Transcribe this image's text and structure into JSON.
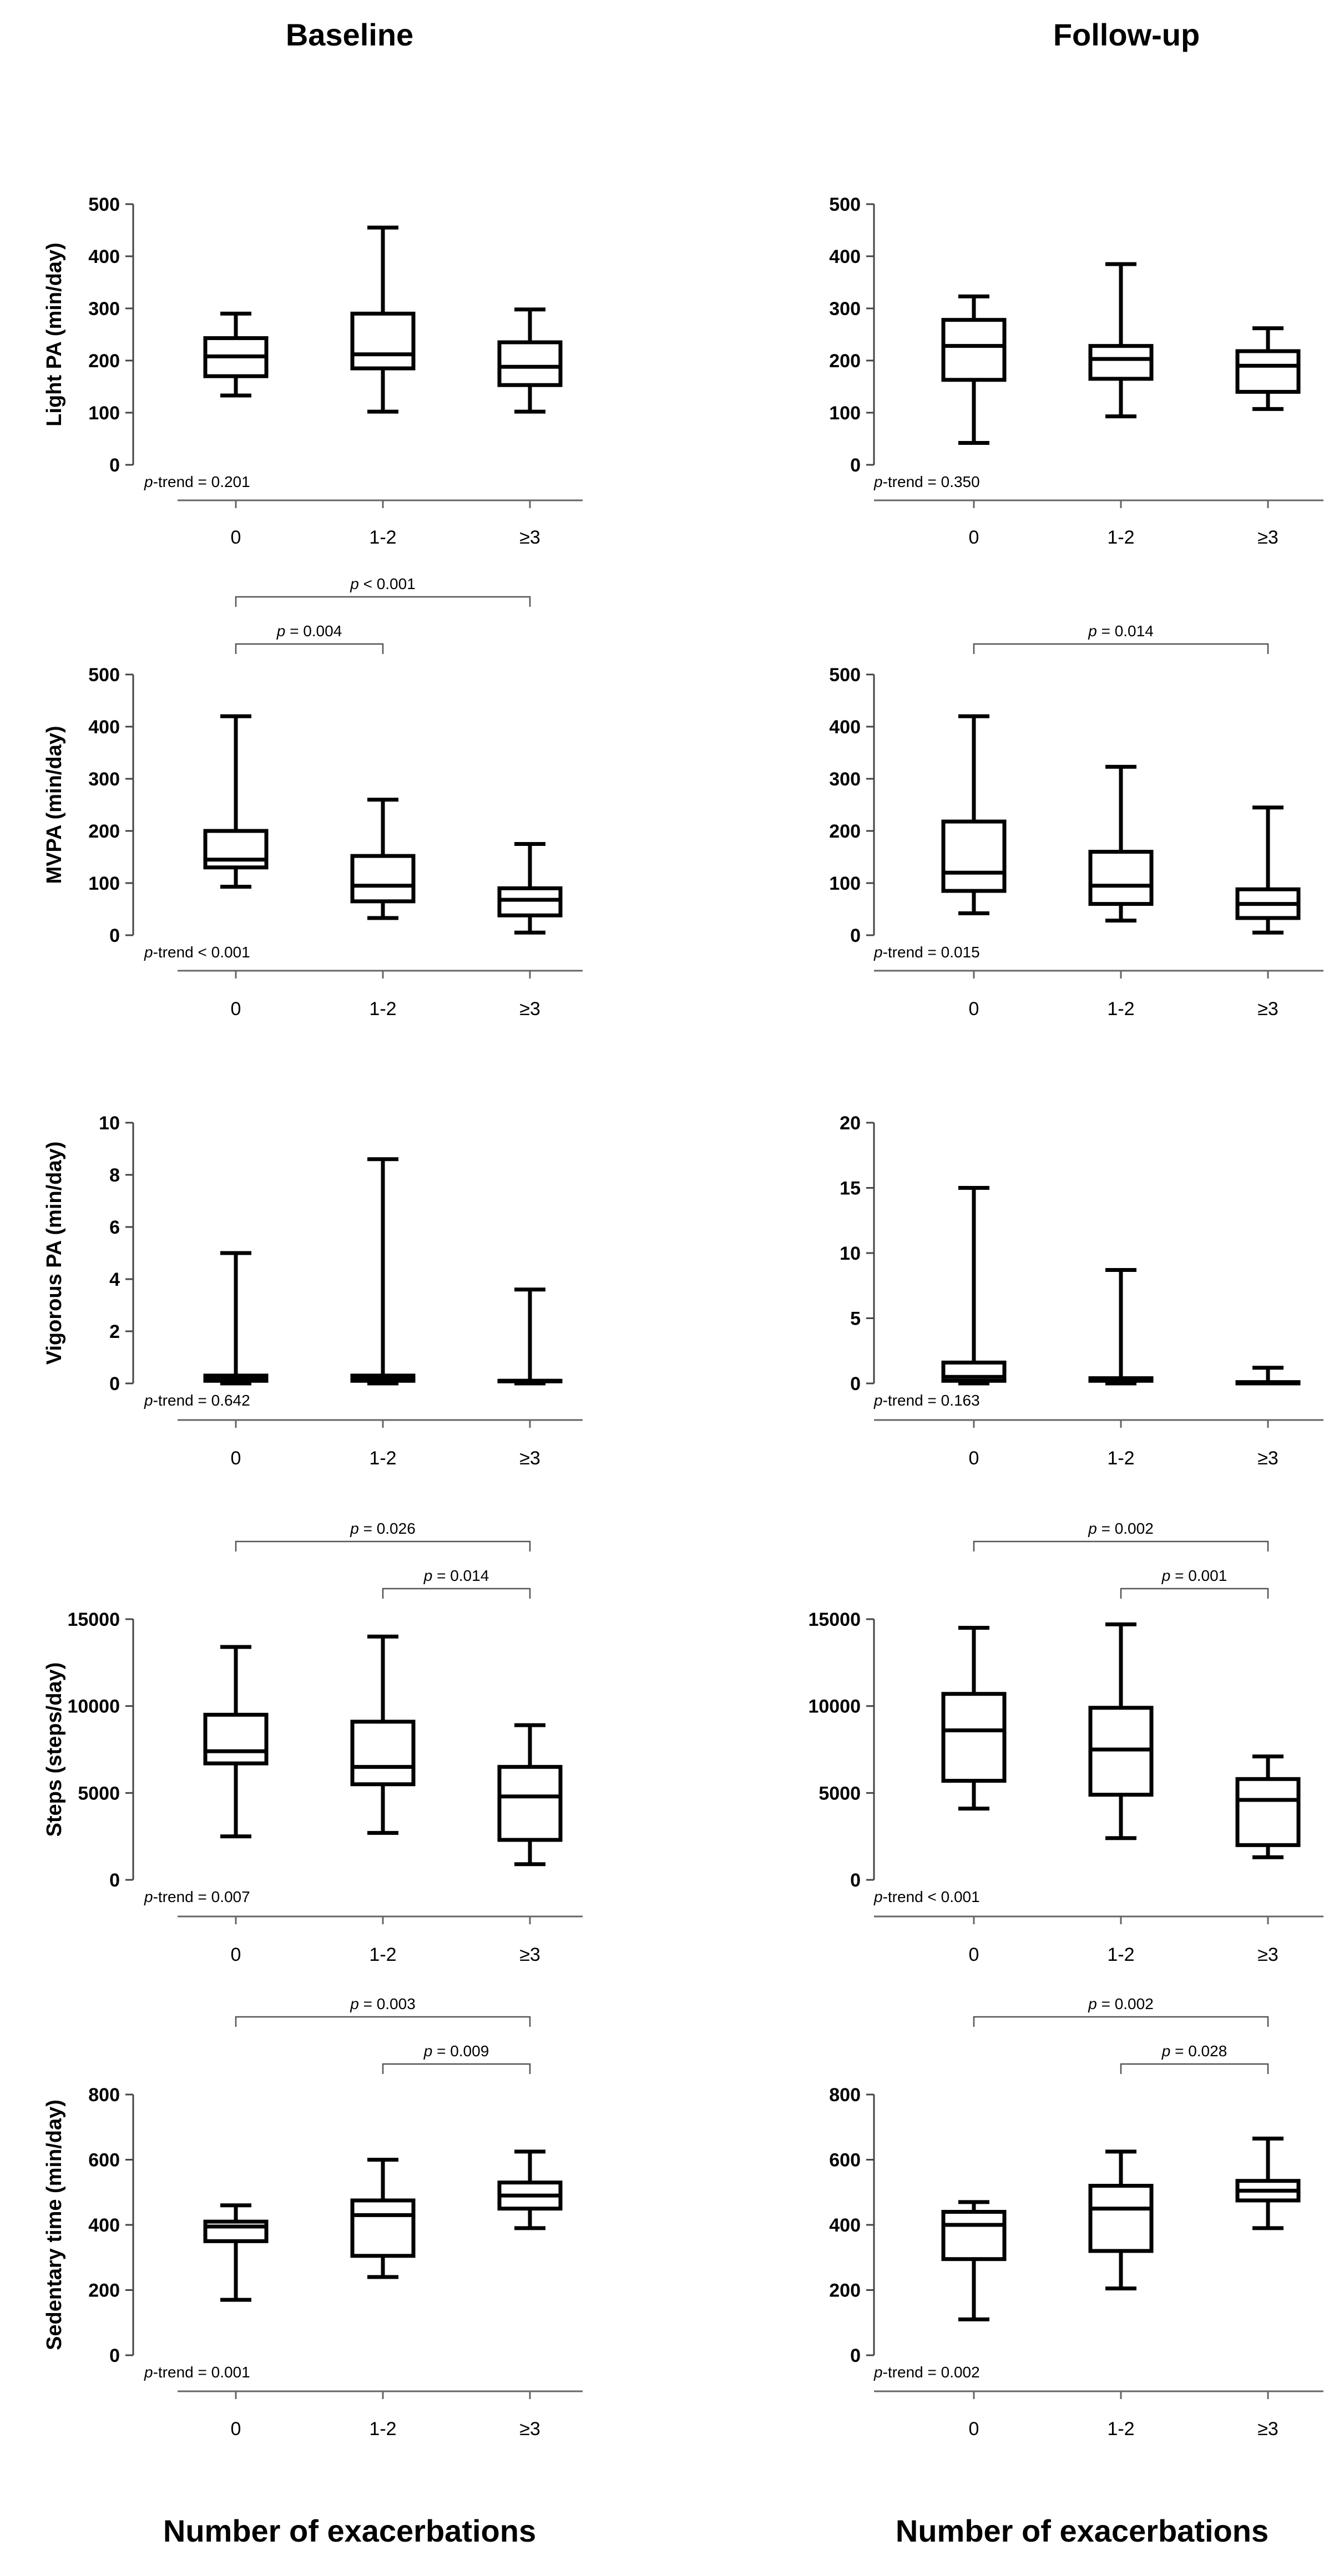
{
  "columns": {
    "left_title": "Baseline",
    "right_title": "Follow-up"
  },
  "bottom_labels": {
    "left": "Number of exacerbations",
    "right": "Number of exacerbations"
  },
  "chart_data": [
    {
      "id": "light-baseline",
      "type": "boxplot",
      "column": "Baseline",
      "ylabel": "Light PA (min/day)",
      "categories": [
        "0",
        "1-2",
        "≥3"
      ],
      "ylim": [
        0,
        500
      ],
      "yticks": [
        "0",
        "100",
        "200",
        "300",
        "400",
        "500"
      ],
      "boxes": [
        {
          "min": 133,
          "q1": 170,
          "median": 208,
          "q3": 243,
          "max": 290
        },
        {
          "min": 102,
          "q1": 185,
          "median": 212,
          "q3": 290,
          "max": 455
        },
        {
          "min": 102,
          "q1": 153,
          "median": 188,
          "q3": 235,
          "max": 298
        }
      ],
      "ptrend_label": "p",
      "ptrend_value": "-trend = 0.201",
      "brackets": []
    },
    {
      "id": "light-followup",
      "type": "boxplot",
      "column": "Follow-up",
      "ylabel": "",
      "categories": [
        "0",
        "1-2",
        "≥3"
      ],
      "ylim": [
        0,
        500
      ],
      "yticks": [
        "0",
        "100",
        "200",
        "300",
        "400",
        "500"
      ],
      "boxes": [
        {
          "min": 42,
          "q1": 163,
          "median": 228,
          "q3": 278,
          "max": 323
        },
        {
          "min": 93,
          "q1": 165,
          "median": 203,
          "q3": 228,
          "max": 385
        },
        {
          "min": 107,
          "q1": 140,
          "median": 190,
          "q3": 218,
          "max": 262
        }
      ],
      "ptrend_label": "p",
      "ptrend_value": "-trend = 0.350",
      "brackets": []
    },
    {
      "id": "mvpa-baseline",
      "type": "boxplot",
      "column": "Baseline",
      "ylabel": "MVPA (min/day)",
      "categories": [
        "0",
        "1-2",
        "≥3"
      ],
      "ylim": [
        0,
        500
      ],
      "yticks": [
        "0",
        "100",
        "200",
        "300",
        "400",
        "500"
      ],
      "boxes": [
        {
          "min": 93,
          "q1": 130,
          "median": 145,
          "q3": 200,
          "max": 420
        },
        {
          "min": 33,
          "q1": 65,
          "median": 95,
          "q3": 152,
          "max": 260
        },
        {
          "min": 5,
          "q1": 38,
          "median": 68,
          "q3": 90,
          "max": 175
        }
      ],
      "ptrend_label": "p",
      "ptrend_value": "-trend < 0.001",
      "brackets": [
        {
          "from": 0,
          "to": 1,
          "level": 0,
          "p": "p",
          "label": " = 0.004"
        },
        {
          "from": 0,
          "to": 2,
          "level": 1,
          "p": "p",
          "label": " < 0.001"
        }
      ]
    },
    {
      "id": "mvpa-followup",
      "type": "boxplot",
      "column": "Follow-up",
      "ylabel": "",
      "categories": [
        "0",
        "1-2",
        "≥3"
      ],
      "ylim": [
        0,
        500
      ],
      "yticks": [
        "0",
        "100",
        "200",
        "300",
        "400",
        "500"
      ],
      "boxes": [
        {
          "min": 42,
          "q1": 85,
          "median": 120,
          "q3": 218,
          "max": 420
        },
        {
          "min": 28,
          "q1": 60,
          "median": 95,
          "q3": 160,
          "max": 323
        },
        {
          "min": 5,
          "q1": 33,
          "median": 60,
          "q3": 88,
          "max": 245
        }
      ],
      "ptrend_label": "p",
      "ptrend_value": "-trend = 0.015",
      "brackets": [
        {
          "from": 0,
          "to": 2,
          "level": 0,
          "p": "p",
          "label": " = 0.014"
        }
      ]
    },
    {
      "id": "vig-baseline",
      "type": "boxplot",
      "column": "Baseline",
      "ylabel": "Vigorous PA (min/day)",
      "categories": [
        "0",
        "1-2",
        "≥3"
      ],
      "ylim": [
        0,
        10
      ],
      "yticks": [
        "0",
        "2",
        "4",
        "6",
        "8",
        "10"
      ],
      "boxes": [
        {
          "min": 0,
          "q1": 0.1,
          "median": 0.2,
          "q3": 0.3,
          "max": 5
        },
        {
          "min": 0,
          "q1": 0.1,
          "median": 0.2,
          "q3": 0.3,
          "max": 8.6
        },
        {
          "min": 0,
          "q1": 0.1,
          "median": 0.1,
          "q3": 0.1,
          "max": 3.6
        }
      ],
      "ptrend_label": "p",
      "ptrend_value": "-trend = 0.642",
      "brackets": []
    },
    {
      "id": "vig-followup",
      "type": "boxplot",
      "column": "Follow-up",
      "ylabel": "",
      "categories": [
        "0",
        "1-2",
        "≥3"
      ],
      "ylim": [
        0,
        20
      ],
      "yticks": [
        "0",
        "5",
        "10",
        "15",
        "20"
      ],
      "boxes": [
        {
          "min": 0,
          "q1": 0.2,
          "median": 0.5,
          "q3": 1.6,
          "max": 15
        },
        {
          "min": 0,
          "q1": 0.2,
          "median": 0.3,
          "q3": 0.4,
          "max": 8.7
        },
        {
          "min": 0,
          "q1": 0,
          "median": 0,
          "q3": 0.1,
          "max": 1.2
        }
      ],
      "ptrend_label": "p",
      "ptrend_value": "-trend = 0.163",
      "brackets": []
    },
    {
      "id": "steps-baseline",
      "type": "boxplot",
      "column": "Baseline",
      "ylabel": "Steps (steps/day)",
      "categories": [
        "0",
        "1-2",
        "≥3"
      ],
      "ylim": [
        0,
        15000
      ],
      "yticks": [
        "0",
        "5000",
        "10000",
        "15000"
      ],
      "boxes": [
        {
          "min": 2500,
          "q1": 6700,
          "median": 7400,
          "q3": 9500,
          "max": 13400
        },
        {
          "min": 2700,
          "q1": 5500,
          "median": 6500,
          "q3": 9100,
          "max": 14000
        },
        {
          "min": 900,
          "q1": 2300,
          "median": 4800,
          "q3": 6500,
          "max": 8900
        }
      ],
      "ptrend_label": "p",
      "ptrend_value": "-trend = 0.007",
      "brackets": [
        {
          "from": 1,
          "to": 2,
          "level": 0,
          "p": "p",
          "label": " = 0.014"
        },
        {
          "from": 0,
          "to": 2,
          "level": 1,
          "p": "p",
          "label": " = 0.026"
        }
      ]
    },
    {
      "id": "steps-followup",
      "type": "boxplot",
      "column": "Follow-up",
      "ylabel": "",
      "categories": [
        "0",
        "1-2",
        "≥3"
      ],
      "ylim": [
        0,
        15000
      ],
      "yticks": [
        "0",
        "5000",
        "10000",
        "15000"
      ],
      "boxes": [
        {
          "min": 4100,
          "q1": 5700,
          "median": 8600,
          "q3": 10700,
          "max": 14500
        },
        {
          "min": 2400,
          "q1": 4900,
          "median": 7500,
          "q3": 9900,
          "max": 14700
        },
        {
          "min": 1300,
          "q1": 2000,
          "median": 4600,
          "q3": 5800,
          "max": 7100
        }
      ],
      "ptrend_label": "p",
      "ptrend_value": "-trend  < 0.001",
      "brackets": [
        {
          "from": 1,
          "to": 2,
          "level": 0,
          "p": "p",
          "label": " = 0.001"
        },
        {
          "from": 0,
          "to": 2,
          "level": 1,
          "p": "p",
          "label": " = 0.002"
        }
      ]
    },
    {
      "id": "sed-baseline",
      "type": "boxplot",
      "column": "Baseline",
      "ylabel": "Sedentary time (min/day)",
      "categories": [
        "0",
        "1-2",
        "≥3"
      ],
      "ylim": [
        0,
        800
      ],
      "yticks": [
        "0",
        "200",
        "400",
        "600",
        "800"
      ],
      "boxes": [
        {
          "min": 170,
          "q1": 350,
          "median": 395,
          "q3": 410,
          "max": 460
        },
        {
          "min": 240,
          "q1": 305,
          "median": 430,
          "q3": 475,
          "max": 600
        },
        {
          "min": 390,
          "q1": 450,
          "median": 490,
          "q3": 530,
          "max": 625
        }
      ],
      "ptrend_label": "p",
      "ptrend_value": "-trend = 0.001",
      "brackets": [
        {
          "from": 1,
          "to": 2,
          "level": 0,
          "p": "p",
          "label": " = 0.009"
        },
        {
          "from": 0,
          "to": 2,
          "level": 1,
          "p": "p",
          "label": " = 0.003"
        }
      ]
    },
    {
      "id": "sed-followup",
      "type": "boxplot",
      "column": "Follow-up",
      "ylabel": "",
      "categories": [
        "0",
        "1-2",
        "≥3"
      ],
      "ylim": [
        0,
        800
      ],
      "yticks": [
        "0",
        "200",
        "400",
        "600",
        "800"
      ],
      "boxes": [
        {
          "min": 110,
          "q1": 295,
          "median": 400,
          "q3": 440,
          "max": 470
        },
        {
          "min": 205,
          "q1": 320,
          "median": 450,
          "q3": 520,
          "max": 625
        },
        {
          "min": 390,
          "q1": 475,
          "median": 505,
          "q3": 535,
          "max": 665
        }
      ],
      "ptrend_label": "p",
      "ptrend_value": "-trend = 0.002",
      "brackets": [
        {
          "from": 1,
          "to": 2,
          "level": 0,
          "p": "p",
          "label": " = 0.028"
        },
        {
          "from": 0,
          "to": 2,
          "level": 1,
          "p": "p",
          "label": " = 0.002"
        }
      ]
    }
  ]
}
